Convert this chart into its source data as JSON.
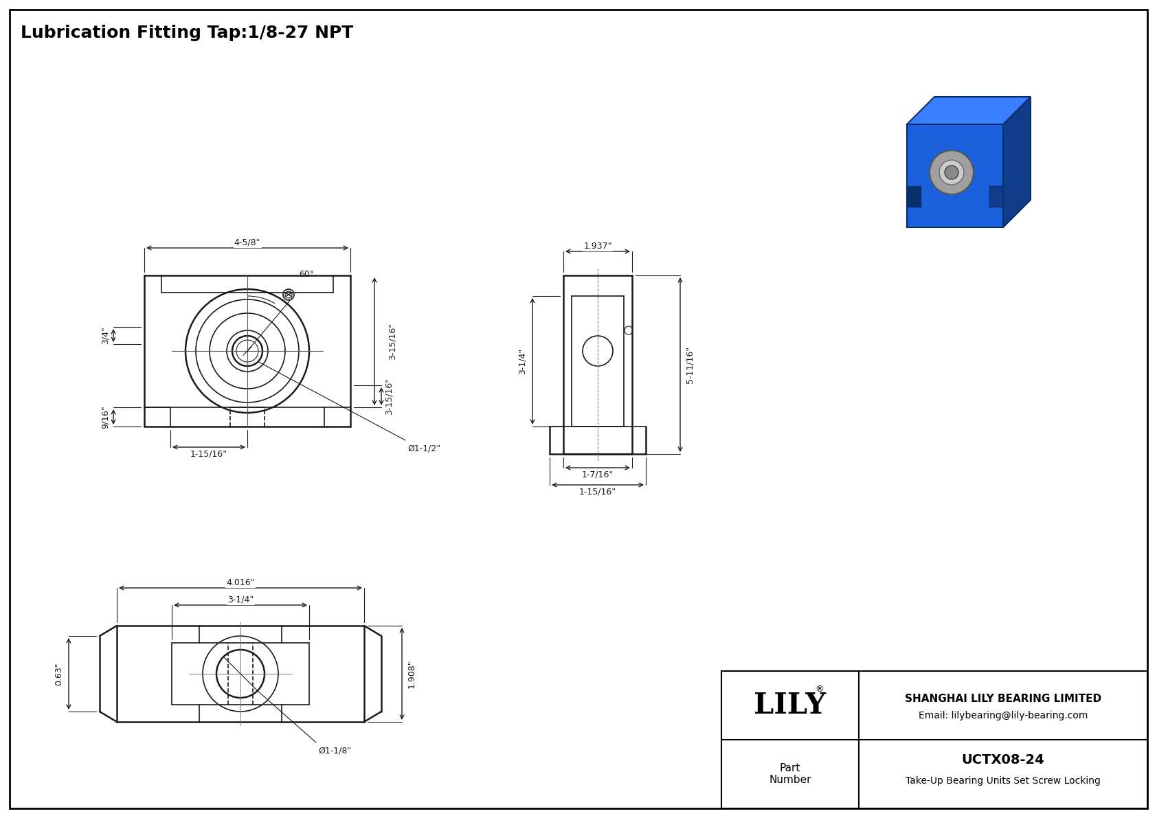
{
  "title": "Lubrication Fitting Tap:1/8-27 NPT",
  "title_fontsize": 18,
  "bg_color": "#ffffff",
  "line_color": "#1a1a1a",
  "dim_color": "#1a1a1a",
  "border_color": "#000000",
  "company": "SHANGHAI LILY BEARING LIMITED",
  "email": "Email: lilybearing@lily-bearing.com",
  "part_label": "Part\nNumber",
  "part_number": "UCTX08-24",
  "part_desc": "Take-Up Bearing Units Set Screw Locking",
  "lily_text": "LILY",
  "dimensions_front": {
    "width_top": "4-5/8\"",
    "height_right": "3-15/16\"",
    "width_bottom": "1-15/16\"",
    "height_left": "3/4\"",
    "height_bottom": "9/16\"",
    "bore": "Ø1-1/2\"",
    "angle": "60°"
  },
  "dimensions_side": {
    "width_top": "1.937\"",
    "height_left": "3-1/4\"",
    "height_full": "5-11/16\"",
    "width_bot1": "1-7/16\"",
    "width_bot2": "1-15/16\""
  },
  "dimensions_bottom": {
    "width_top": "4.016\"",
    "width_mid": "3-1/4\"",
    "height_right": "1.908\"",
    "height_bottom": "0.63\"",
    "bore": "Ø1-1/8\""
  }
}
